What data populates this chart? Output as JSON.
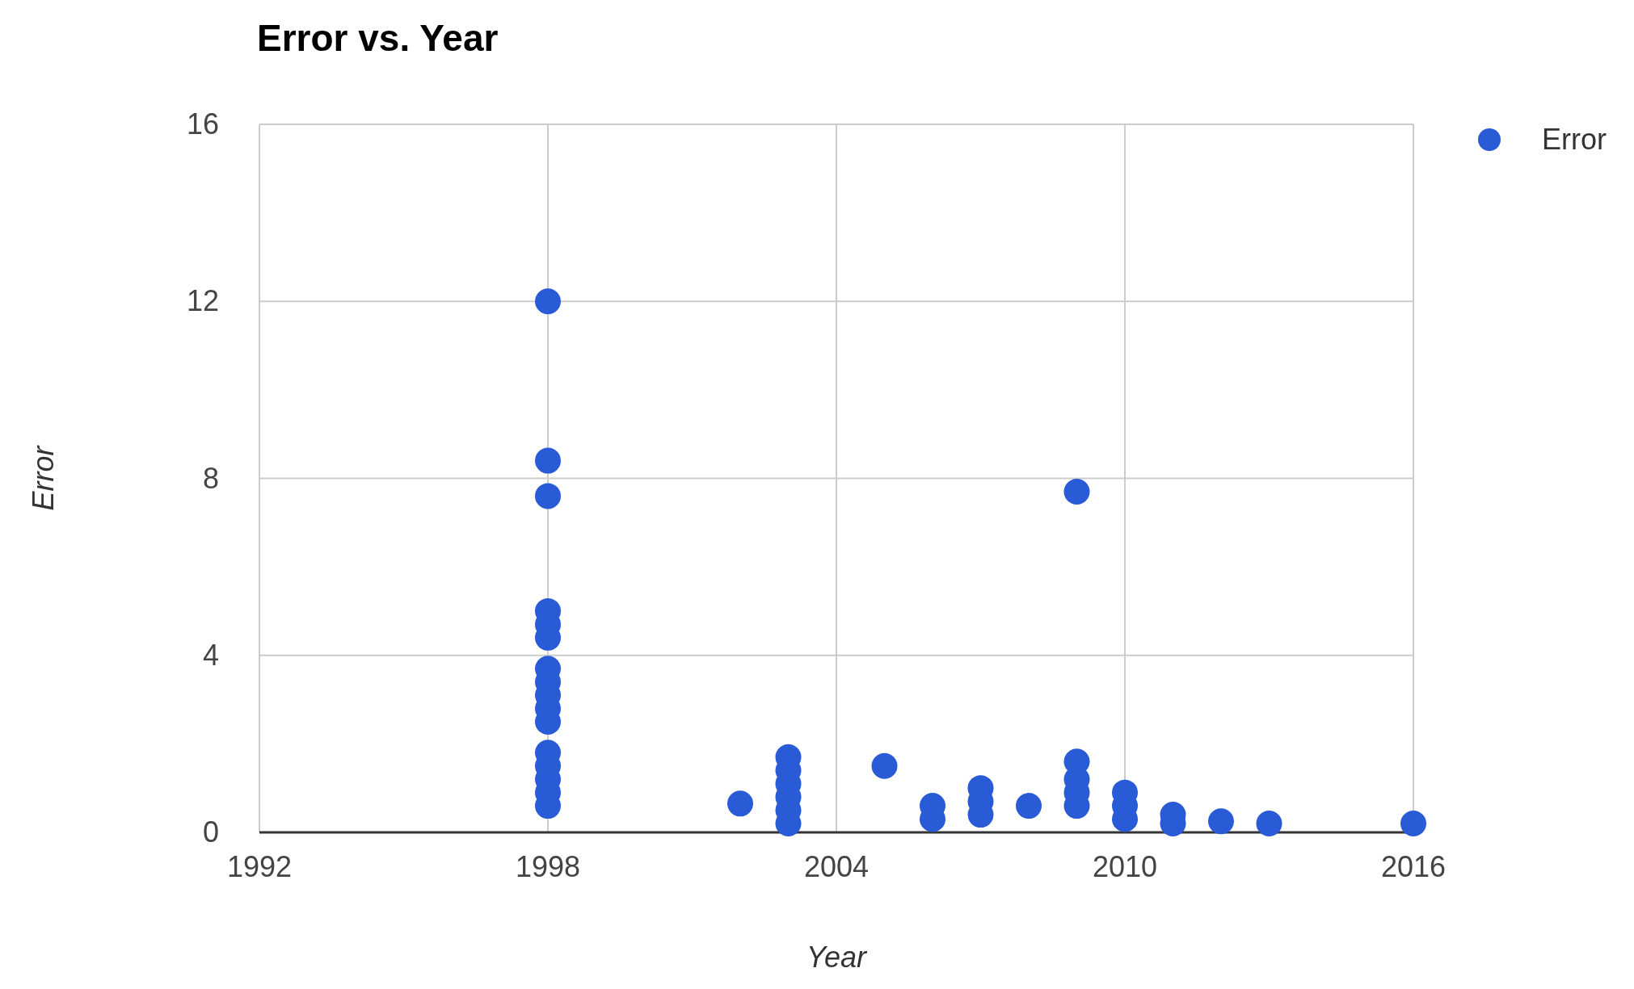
{
  "chart_data": {
    "type": "scatter",
    "title": "Error vs. Year",
    "xlabel": "Year",
    "ylabel": "Error",
    "xlim": [
      1992,
      2016
    ],
    "xticks": [
      1992,
      1998,
      2004,
      2010,
      2016
    ],
    "ylim": [
      0,
      16
    ],
    "yticks": [
      0,
      4,
      8,
      12,
      16
    ],
    "grid": true,
    "legend": "top right",
    "marker": "circle",
    "series": [
      {
        "name": "Error",
        "color": "#2a5bd7",
        "x": [
          1998,
          1998,
          1998,
          1998,
          1998,
          1998,
          1998,
          1998,
          1998,
          1998,
          1998,
          1998,
          1998,
          1998,
          1998,
          1998,
          2002,
          2003,
          2003,
          2003,
          2003,
          2003,
          2003,
          2005,
          2006,
          2006,
          2007,
          2007,
          2007,
          2008,
          2009,
          2009,
          2009,
          2009,
          2009,
          2010,
          2010,
          2010,
          2011,
          2011,
          2012,
          2013,
          2016
        ],
        "values": [
          12.0,
          8.4,
          7.6,
          5.0,
          4.7,
          4.4,
          3.7,
          3.4,
          3.1,
          2.8,
          2.5,
          1.8,
          1.5,
          1.2,
          0.9,
          0.6,
          0.65,
          1.7,
          1.4,
          1.1,
          0.8,
          0.5,
          0.2,
          1.5,
          0.6,
          0.3,
          1.0,
          0.7,
          0.4,
          0.6,
          7.7,
          1.6,
          1.2,
          0.9,
          0.6,
          0.9,
          0.6,
          0.3,
          0.4,
          0.2,
          0.25,
          0.2,
          0.2
        ]
      }
    ]
  }
}
